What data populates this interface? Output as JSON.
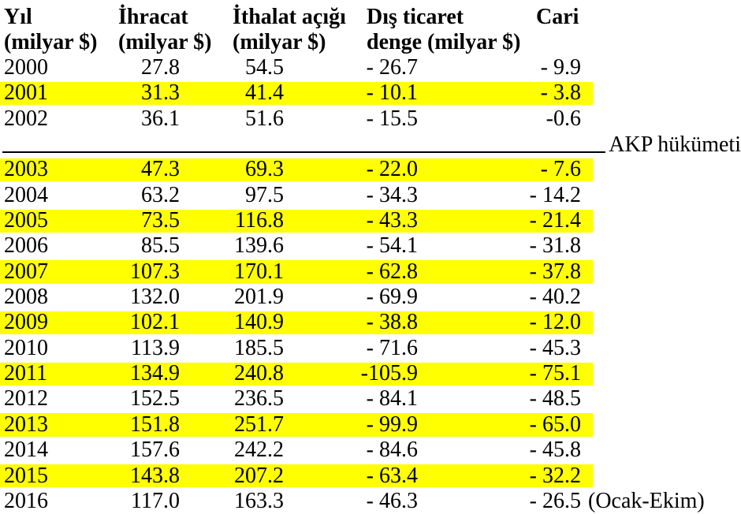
{
  "colors": {
    "highlight": "#ffff00",
    "text": "#000000",
    "background": "#ffffff"
  },
  "table": {
    "headers": [
      {
        "line1": "Yıl",
        "line2": "(milyar $)"
      },
      {
        "line1": "İhracat",
        "line2": "(milyar $)"
      },
      {
        "line1": "İthalat açığı",
        "line2": "(milyar $)"
      },
      {
        "line1": "Dış ticaret",
        "line2": "denge (milyar $)"
      },
      {
        "line1": "Cari",
        "line2": ""
      }
    ],
    "separator": {
      "label": "AKP hükümeti"
    },
    "rows": [
      {
        "year": "2000",
        "ihracat": "27.8",
        "ithalat": "54.5",
        "denge": "- 26.7",
        "cari": "- 9.9",
        "note": "",
        "highlight": false,
        "separator_before": false
      },
      {
        "year": "2001",
        "ihracat": "31.3",
        "ithalat": "41.4",
        "denge": "- 10.1",
        "cari": "- 3.8",
        "note": "",
        "highlight": true,
        "separator_before": false
      },
      {
        "year": "2002",
        "ihracat": "36.1",
        "ithalat": "51.6",
        "denge": "- 15.5",
        "cari": "-0.6",
        "note": "",
        "highlight": false,
        "separator_before": false
      },
      {
        "year": "2003",
        "ihracat": "47.3",
        "ithalat": "69.3",
        "denge": "- 22.0",
        "cari": "- 7.6",
        "note": "",
        "highlight": true,
        "separator_before": true
      },
      {
        "year": "2004",
        "ihracat": "63.2",
        "ithalat": "97.5",
        "denge": "- 34.3",
        "cari": "- 14.2",
        "note": "",
        "highlight": false,
        "separator_before": false
      },
      {
        "year": "2005",
        "ihracat": "73.5",
        "ithalat": "116.8",
        "denge": "- 43.3",
        "cari": "- 21.4",
        "note": "",
        "highlight": true,
        "separator_before": false
      },
      {
        "year": "2006",
        "ihracat": "85.5",
        "ithalat": "139.6",
        "denge": "- 54.1",
        "cari": "- 31.8",
        "note": "",
        "highlight": false,
        "separator_before": false
      },
      {
        "year": "2007",
        "ihracat": "107.3",
        "ithalat": "170.1",
        "denge": "- 62.8",
        "cari": "- 37.8",
        "note": "",
        "highlight": true,
        "separator_before": false
      },
      {
        "year": "2008",
        "ihracat": "132.0",
        "ithalat": "201.9",
        "denge": "- 69.9",
        "cari": "- 40.2",
        "note": "",
        "highlight": false,
        "separator_before": false
      },
      {
        "year": "2009",
        "ihracat": "102.1",
        "ithalat": "140.9",
        "denge": "- 38.8",
        "cari": "- 12.0",
        "note": "",
        "highlight": true,
        "separator_before": false
      },
      {
        "year": "2010",
        "ihracat": "113.9",
        "ithalat": "185.5",
        "denge": "- 71.6",
        "cari": "- 45.3",
        "note": "",
        "highlight": false,
        "separator_before": false
      },
      {
        "year": "2011",
        "ihracat": "134.9",
        "ithalat": "240.8",
        "denge": "-105.9",
        "cari": "- 75.1",
        "note": "",
        "highlight": true,
        "separator_before": false
      },
      {
        "year": "2012",
        "ihracat": "152.5",
        "ithalat": "236.5",
        "denge": "- 84.1",
        "cari": "- 48.5",
        "note": "",
        "highlight": false,
        "separator_before": false
      },
      {
        "year": "2013",
        "ihracat": "151.8",
        "ithalat": "251.7",
        "denge": "- 99.9",
        "cari": "- 65.0",
        "note": "",
        "highlight": true,
        "separator_before": false
      },
      {
        "year": "2014",
        "ihracat": "157.6",
        "ithalat": "242.2",
        "denge": "- 84.6",
        "cari": "- 45.8",
        "note": "",
        "highlight": false,
        "separator_before": false
      },
      {
        "year": "2015",
        "ihracat": "143.8",
        "ithalat": "207.2",
        "denge": "- 63.4",
        "cari": "- 32.2",
        "note": "",
        "highlight": true,
        "separator_before": false
      },
      {
        "year": "2016",
        "ihracat": "117.0",
        "ithalat": "163.3",
        "denge": "- 46.3",
        "cari": "- 26.5",
        "note": "(Ocak-Ekim)",
        "highlight": false,
        "separator_before": false
      }
    ]
  }
}
